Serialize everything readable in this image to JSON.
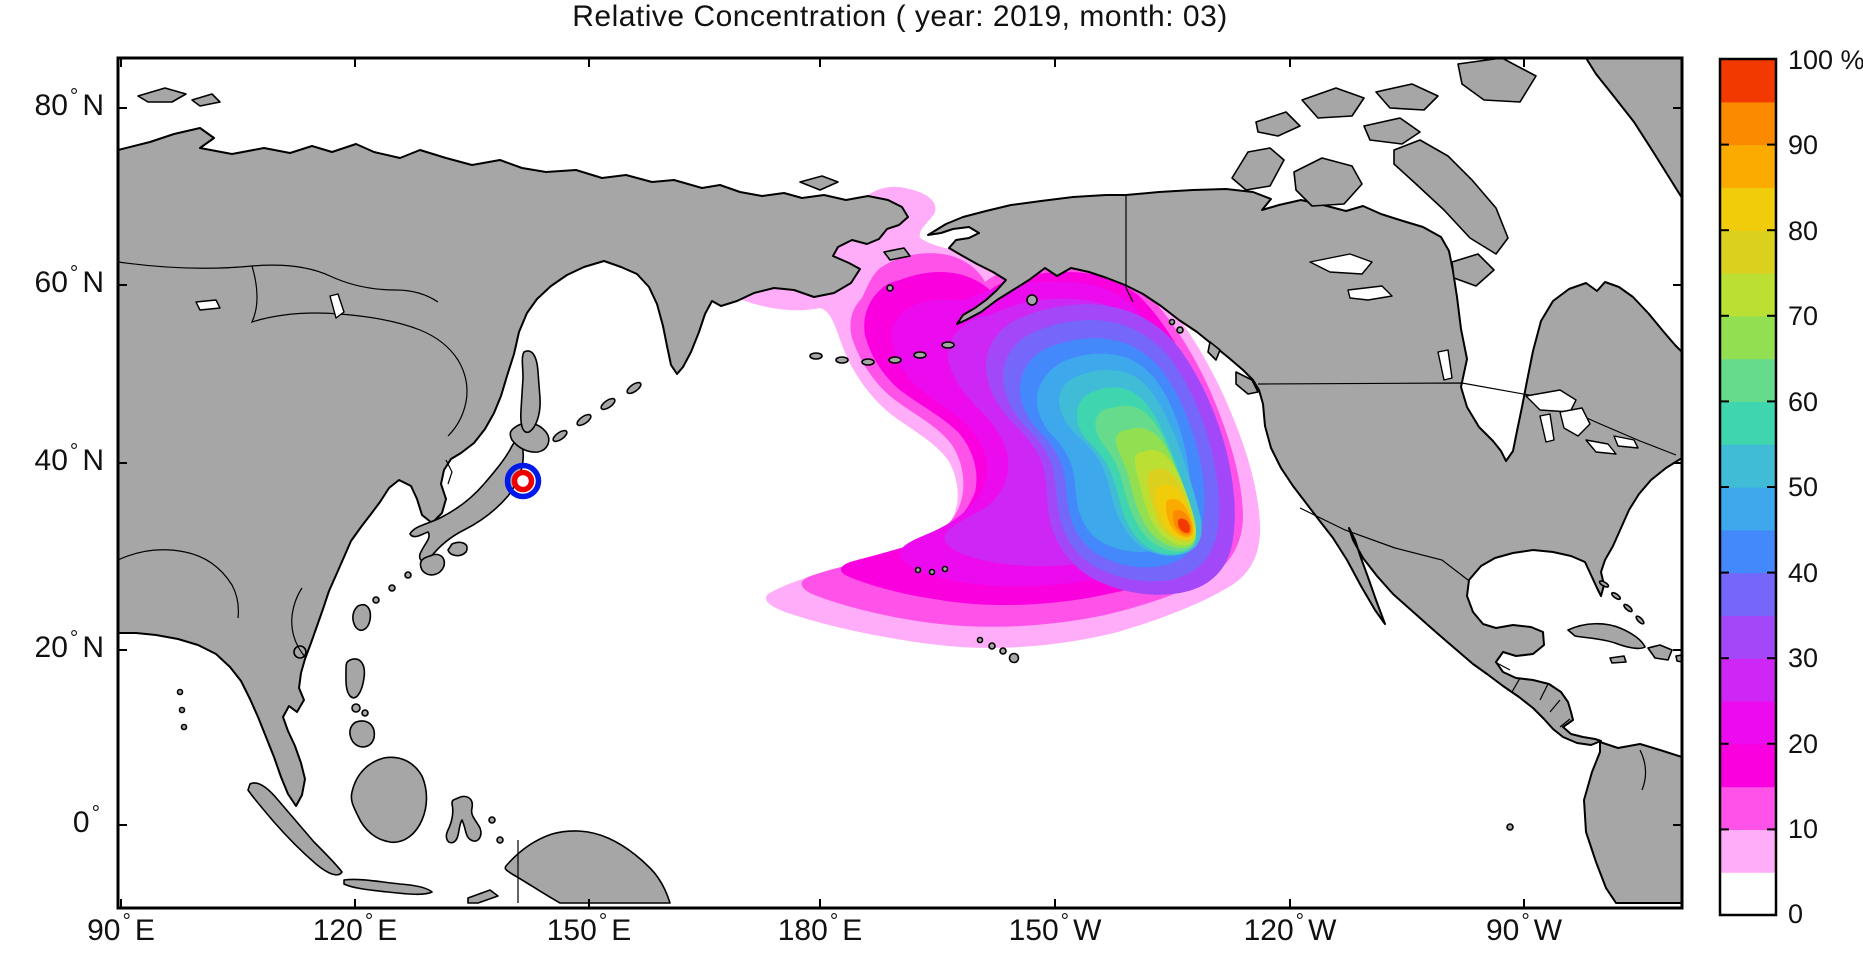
{
  "title": "Relative Concentration ( year: 2019, month: 03)",
  "colors": {
    "land": "#a6a6a6",
    "coast": "#000000",
    "ocean": "#ffffff",
    "frame": "#000000",
    "marker_outer": "#0018e8",
    "marker_inner": "#ee0000"
  },
  "axes": {
    "degree_symbol": "°",
    "x_ticks": [
      {
        "value": "90",
        "dir": "E"
      },
      {
        "value": "120",
        "dir": "E"
      },
      {
        "value": "150",
        "dir": "E"
      },
      {
        "value": "180",
        "dir": "E"
      },
      {
        "value": "150",
        "dir": "W"
      },
      {
        "value": "120",
        "dir": "W"
      },
      {
        "value": "90",
        "dir": "W"
      }
    ],
    "y_ticks": [
      {
        "value": "80",
        "dir": "N"
      },
      {
        "value": "60",
        "dir": "N"
      },
      {
        "value": "40",
        "dir": "N"
      },
      {
        "value": "20",
        "dir": "N"
      },
      {
        "value": "0",
        "dir": ""
      }
    ]
  },
  "colorbar": {
    "unit": "%",
    "tick_labels": [
      "100 %",
      "90",
      "80",
      "70",
      "60",
      "50",
      "40",
      "30",
      "20",
      "10",
      "0"
    ],
    "bands": [
      {
        "min": 0,
        "max": 5,
        "color": "#ffffff"
      },
      {
        "min": 5,
        "max": 10,
        "color": "#ffadf8"
      },
      {
        "min": 10,
        "max": 15,
        "color": "#ff52e8"
      },
      {
        "min": 15,
        "max": 20,
        "color": "#fb00df"
      },
      {
        "min": 20,
        "max": 25,
        "color": "#eb0bee"
      },
      {
        "min": 25,
        "max": 30,
        "color": "#ce26f4"
      },
      {
        "min": 30,
        "max": 35,
        "color": "#a348f8"
      },
      {
        "min": 35,
        "max": 40,
        "color": "#7467fa"
      },
      {
        "min": 40,
        "max": 45,
        "color": "#4489fb"
      },
      {
        "min": 45,
        "max": 50,
        "color": "#3ea8ec"
      },
      {
        "min": 50,
        "max": 55,
        "color": "#40bcd7"
      },
      {
        "min": 55,
        "max": 60,
        "color": "#3fd6af"
      },
      {
        "min": 60,
        "max": 65,
        "color": "#65db8b"
      },
      {
        "min": 65,
        "max": 70,
        "color": "#92e051"
      },
      {
        "min": 70,
        "max": 75,
        "color": "#bcdf33"
      },
      {
        "min": 75,
        "max": 80,
        "color": "#dcd01f"
      },
      {
        "min": 80,
        "max": 85,
        "color": "#f1cc0b"
      },
      {
        "min": 85,
        "max": 90,
        "color": "#fbab00"
      },
      {
        "min": 90,
        "max": 95,
        "color": "#fb8a00"
      },
      {
        "min": 95,
        "max": 100,
        "color": "#f23a00"
      }
    ]
  },
  "chart_data": {
    "type": "heatmap",
    "subtype": "filled-contour-geographic-map",
    "title": "Relative Concentration ( year: 2019, month: 03)",
    "year": "2019",
    "month": "03",
    "units": "%",
    "value_range": [
      0,
      100
    ],
    "contour_interval_percent": 5,
    "colorbar_tick_step_percent": 10,
    "geo_extent": {
      "lon_min_deg_e": 89,
      "lon_max_deg_e": 290,
      "lat_min_deg_n": -9,
      "lat_max_deg_n": 87
    },
    "x_tick_longitudes": [
      "90E",
      "120E",
      "150E",
      "180E",
      "150W",
      "120W",
      "90W"
    ],
    "y_tick_latitudes": [
      "80N",
      "60N",
      "40N",
      "20N",
      "0"
    ],
    "levels": [
      5,
      10,
      15,
      20,
      25,
      30,
      35,
      40,
      45,
      50,
      55,
      60,
      65,
      70,
      75,
      80,
      85,
      90,
      95
    ],
    "level_colors": {
      "5": "#ffadf8",
      "10": "#ff52e8",
      "15": "#fb00df",
      "20": "#eb0bee",
      "25": "#ce26f4",
      "30": "#a348f8",
      "35": "#7467fa",
      "40": "#4489fb",
      "45": "#3ea8ec",
      "50": "#40bcd7",
      "55": "#3fd6af",
      "60": "#65db8b",
      "65": "#92e051",
      "70": "#bcdf33",
      "75": "#dcd01f",
      "80": "#f1cc0b",
      "85": "#fbab00",
      "90": "#fb8a00",
      "95": "#f23a00"
    },
    "source_marker": {
      "name": "release site near Fukushima, Japan",
      "lon_deg_e": 141,
      "lat_deg_n": 38
    },
    "plume": {
      "description": "Concentration plume in the Northeast Pacific; maximum off the coast of California/Baja, low-level band extending across the Gulf of Alaska, Bering Sea and through the Bering Strait, and a low-level lobe stretching west along ~26N to ~173E.",
      "max_concentration_center": {
        "lon_deg_w": 133,
        "lat_deg_n": 33,
        "value_percent": 100
      },
      "contour_extents": [
        {
          "level_percent": 5,
          "lon_range_deg_e": [
            166,
            237
          ],
          "lat_range_deg_n": [
            20,
            72
          ]
        },
        {
          "level_percent": 30,
          "lon_range_deg_e": [
            201,
            233
          ],
          "lat_range_deg_n": [
            26,
            59
          ]
        },
        {
          "level_percent": 60,
          "lon_range_deg_e": [
            217,
            231
          ],
          "lat_range_deg_n": [
            27,
            49
          ]
        },
        {
          "level_percent": 90,
          "lon_range_deg_e": [
            224,
            229
          ],
          "lat_range_deg_n": [
            31,
            36
          ]
        }
      ]
    }
  }
}
